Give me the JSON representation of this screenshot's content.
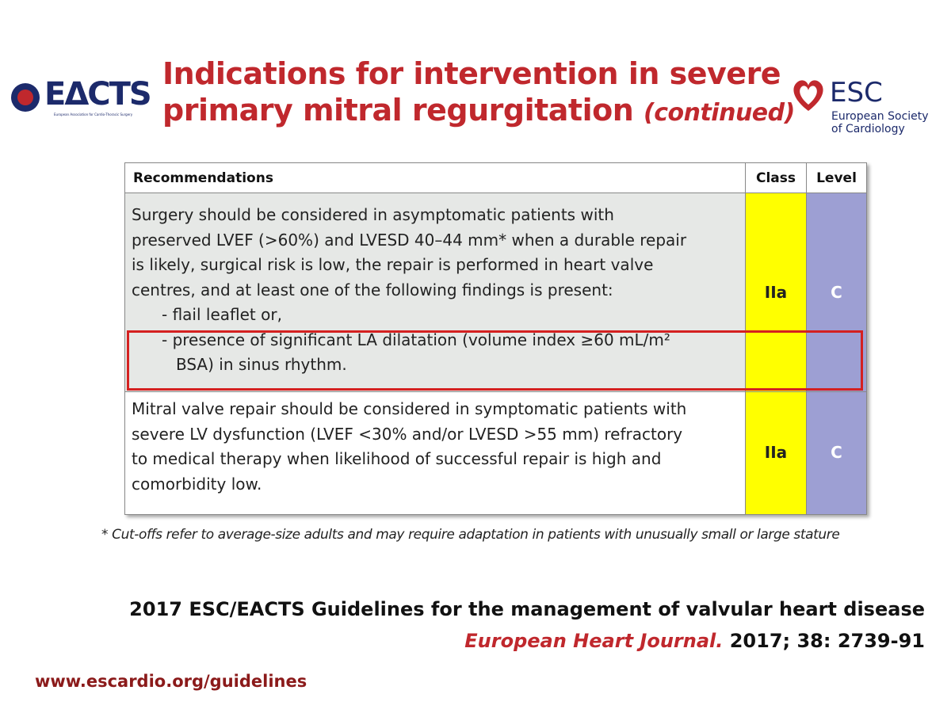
{
  "header": {
    "title_lines": [
      "Indications for intervention in severe",
      "primary mitral regurgitation"
    ],
    "title_suffix": "(continued)",
    "left_logo": {
      "name": "EΔCTS",
      "subtitle": "European Association for Cardio-Thoracic Surgery"
    },
    "right_logo": {
      "name": "ESC",
      "lines": [
        "European Society",
        "of Cardiology"
      ]
    }
  },
  "table": {
    "columns": [
      "Recommendations",
      "Class",
      "Level"
    ],
    "rows": [
      {
        "lines": [
          "Surgery should be considered in asymptomatic patients with",
          "preserved LVEF (>60%) and LVESD 40–44 mm* when a durable repair",
          "is likely, surgical risk is low, the repair is performed in heart valve",
          "centres, and at least one of the following findings is present:",
          "- flail leaflet or,",
          "- presence of significant LA dilatation (volume index ≥60 mL/m²",
          "BSA) in sinus rhythm."
        ],
        "class": "IIa",
        "level": "C"
      },
      {
        "lines": [
          "Mitral valve repair should be considered in symptomatic patients with",
          "severe LV dysfunction (LVEF <30% and/or LVESD >55 mm) refractory",
          "to medical therapy when likelihood of successful repair is high and",
          "comorbidity low."
        ],
        "class": "IIa",
        "level": "C"
      }
    ]
  },
  "footnote": "* Cut-offs refer to average-size adults and may require adaptation in patients with unusually small or large stature",
  "citation": {
    "title": "2017 ESC/EACTS Guidelines for the management of valvular heart disease",
    "journal": "European Heart Journal.",
    "details": "2017; 38: 2739-91"
  },
  "url": "www.escardio.org/guidelines"
}
